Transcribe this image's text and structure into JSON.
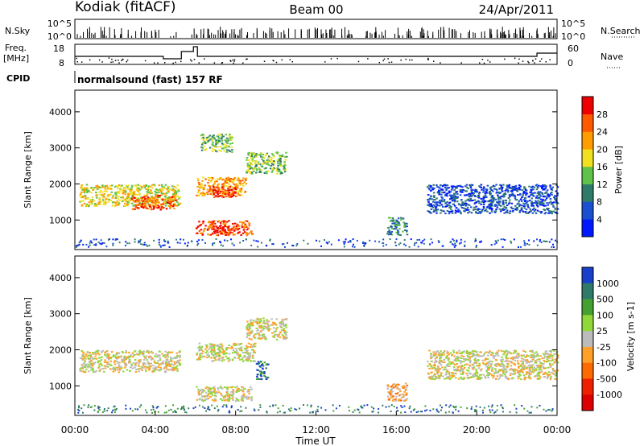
{
  "header": {
    "station": "Kodiak (fitACF)",
    "beam": "Beam 00",
    "date": "24/Apr/2011"
  },
  "summary_panels": {
    "nsky_label": "N.Sky",
    "nsky_ticks": [
      "10^5",
      "10^0"
    ],
    "nsearch_label": "N.Search",
    "freq_label_top": "Freq.",
    "freq_label_bottom": "[MHz]",
    "freq_ticks": [
      "18",
      "8"
    ],
    "nave_label": "Nave",
    "nave_ticks": [
      "60",
      "0"
    ],
    "cpid_label": "CPID",
    "cpid_text": "normalsound (fast) 157 RF"
  },
  "chart_data": [
    {
      "type": "heatmap",
      "name": "power",
      "ylabel": "Slant Range [km]",
      "xlabel": "Time UT",
      "xlim": [
        0,
        24
      ],
      "ylim": [
        180,
        4600
      ],
      "y_ticks": [
        1000,
        2000,
        3000,
        4000
      ],
      "colorbar_label": "Power [dB]",
      "colorbar_ticks": [
        "4",
        "8",
        "12",
        "16",
        "20",
        "24",
        "28"
      ],
      "colorbar_colors": [
        "#0018ff",
        "#1a4fd1",
        "#2f7a6a",
        "#5fc24a",
        "#f0e020",
        "#ff9d00",
        "#ff5a00",
        "#ee0000"
      ],
      "regions": [
        {
          "t": [
            0.2,
            5.2
          ],
          "r": [
            1400,
            2000
          ],
          "level": 4
        },
        {
          "t": [
            2.8,
            5.0
          ],
          "r": [
            1300,
            1700
          ],
          "level": 6
        },
        {
          "t": [
            6.0,
            8.5
          ],
          "r": [
            1700,
            2200
          ],
          "level": 5
        },
        {
          "t": [
            6.8,
            8.0
          ],
          "r": [
            1650,
            1950
          ],
          "level": 7
        },
        {
          "t": [
            6.0,
            8.8
          ],
          "r": [
            600,
            1000
          ],
          "level": 6
        },
        {
          "t": [
            6.8,
            7.8
          ],
          "r": [
            650,
            850
          ],
          "level": 7
        },
        {
          "t": [
            8.5,
            10.5
          ],
          "r": [
            2300,
            2900
          ],
          "level": 3
        },
        {
          "t": [
            6.2,
            7.8
          ],
          "r": [
            2900,
            3400
          ],
          "level": 3
        },
        {
          "t": [
            15.5,
            16.5
          ],
          "r": [
            600,
            1100
          ],
          "level": 2
        },
        {
          "t": [
            17.5,
            24.0
          ],
          "r": [
            1200,
            2000
          ],
          "level": 1
        }
      ]
    },
    {
      "type": "heatmap",
      "name": "velocity",
      "ylabel": "Slant Range [km]",
      "xlabel": "Time UT",
      "xlim": [
        0,
        24
      ],
      "ylim": [
        180,
        4600
      ],
      "y_ticks": [
        1000,
        2000,
        3000,
        4000
      ],
      "colorbar_label": "Velocity [m s-1]",
      "colorbar_ticks": [
        "1000",
        "500",
        "100",
        "25",
        "-25",
        "-100",
        "-500",
        "-1000"
      ],
      "colorbar_colors": [
        "#1a3fc8",
        "#2f7a6a",
        "#44a030",
        "#90d83a",
        "#bbbbbb",
        "#ffa02a",
        "#ff6a00",
        "#ee2000",
        "#dd0000"
      ],
      "regions": [
        {
          "t": [
            0.2,
            5.2
          ],
          "r": [
            1400,
            2000
          ],
          "level": 4
        },
        {
          "t": [
            6.0,
            9.0
          ],
          "r": [
            1700,
            2200
          ],
          "level": 4
        },
        {
          "t": [
            6.0,
            8.8
          ],
          "r": [
            600,
            1000
          ],
          "level": 4
        },
        {
          "t": [
            8.5,
            10.5
          ],
          "r": [
            2300,
            2900
          ],
          "level": 4
        },
        {
          "t": [
            15.5,
            16.5
          ],
          "r": [
            600,
            1100
          ],
          "level": 5
        },
        {
          "t": [
            9.0,
            9.6
          ],
          "r": [
            1200,
            1700
          ],
          "level": 1
        },
        {
          "t": [
            17.5,
            24.0
          ],
          "r": [
            1200,
            2000
          ],
          "level": 4
        }
      ]
    }
  ],
  "x_ticks": [
    "00:00",
    "04:00",
    "08:00",
    "12:00",
    "16:00",
    "20:00",
    "00:00"
  ],
  "x_axis_label": "Time UT"
}
